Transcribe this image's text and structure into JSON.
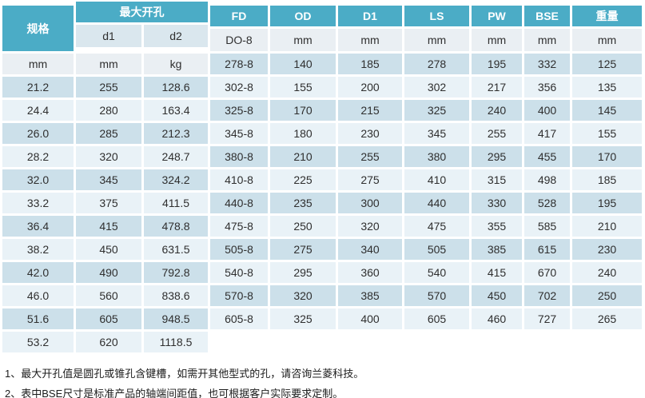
{
  "colors": {
    "header-bg": "#4BACC6",
    "header-text": "#ffffff",
    "subheader-bg": "#DAE7EE",
    "units-bg": "#EAEFF3",
    "stripe-dark": "#CCE0EA",
    "stripe-light": "#E9F2F7"
  },
  "table": {
    "header": {
      "spec": "规格",
      "group_max_bore": "最大开孔",
      "sub_d1": "d1",
      "sub_d2": "d2",
      "cols": [
        "FD",
        "OD",
        "D1",
        "LS",
        "PW",
        "BSE",
        "重量"
      ]
    },
    "units_row": {
      "spec": "DO-8",
      "values": [
        "mm",
        "mm",
        "mm",
        "mm",
        "mm",
        "mm",
        "mm",
        "mm",
        "kg"
      ]
    },
    "rows": [
      {
        "spec": "278-8",
        "values": [
          "140",
          "185",
          "278",
          "195",
          "332",
          "125",
          "21.2",
          "255",
          "128.6"
        ]
      },
      {
        "spec": "302-8",
        "values": [
          "155",
          "200",
          "302",
          "217",
          "356",
          "135",
          "24.4",
          "280",
          "163.4"
        ]
      },
      {
        "spec": "325-8",
        "values": [
          "170",
          "215",
          "325",
          "240",
          "400",
          "145",
          "26.0",
          "285",
          "212.3"
        ]
      },
      {
        "spec": "345-8",
        "values": [
          "180",
          "230",
          "345",
          "255",
          "417",
          "155",
          "28.2",
          "320",
          "248.7"
        ]
      },
      {
        "spec": "380-8",
        "values": [
          "210",
          "255",
          "380",
          "295",
          "455",
          "170",
          "32.0",
          "345",
          "324.2"
        ]
      },
      {
        "spec": "410-8",
        "values": [
          "225",
          "275",
          "410",
          "315",
          "498",
          "185",
          "33.2",
          "375",
          "411.5"
        ]
      },
      {
        "spec": "440-8",
        "values": [
          "235",
          "300",
          "440",
          "330",
          "528",
          "195",
          "36.4",
          "415",
          "478.8"
        ]
      },
      {
        "spec": "475-8",
        "values": [
          "250",
          "320",
          "475",
          "355",
          "585",
          "210",
          "38.2",
          "450",
          "631.5"
        ]
      },
      {
        "spec": "505-8",
        "values": [
          "275",
          "340",
          "505",
          "385",
          "615",
          "230",
          "42.0",
          "490",
          "792.8"
        ]
      },
      {
        "spec": "540-8",
        "values": [
          "295",
          "360",
          "540",
          "415",
          "670",
          "240",
          "46.0",
          "560",
          "838.6"
        ]
      },
      {
        "spec": "570-8",
        "values": [
          "320",
          "385",
          "570",
          "450",
          "702",
          "250",
          "51.6",
          "605",
          "948.5"
        ]
      },
      {
        "spec": "605-8",
        "values": [
          "325",
          "400",
          "605",
          "460",
          "727",
          "265",
          "53.2",
          "620",
          "1118.5"
        ]
      }
    ]
  },
  "notes": [
    "1、最大开孔值是圆孔或锥孔含键槽，如需开其他型式的孔，请咨询兰菱科技。",
    "2、表中BSE尺寸是标准产品的轴端间距值，也可根据客户实际要求定制。"
  ]
}
